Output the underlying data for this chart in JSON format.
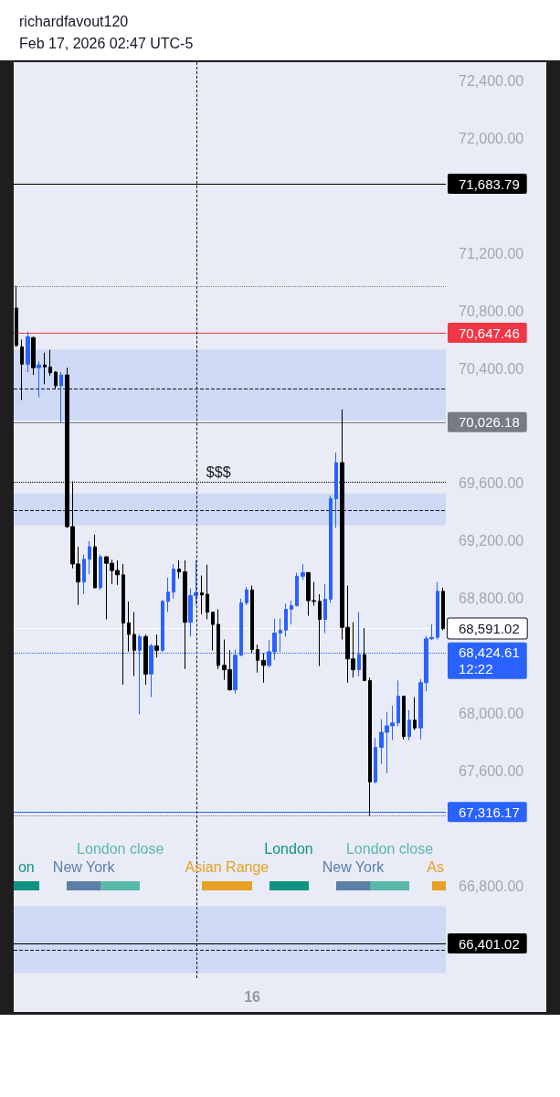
{
  "chart_data": {
    "type": "candlestick",
    "title": "richardfavout120",
    "subtitle": "Feb 17, 2026 02:47 UTC-5",
    "categories": [
      null,
      null,
      null,
      null,
      null,
      null,
      null,
      null,
      null,
      null,
      null,
      null,
      null,
      null,
      null,
      null,
      null,
      null,
      null,
      null,
      null,
      null,
      null,
      null,
      null,
      null,
      null,
      null,
      null,
      null,
      null,
      null,
      null,
      null,
      null,
      null,
      null,
      null,
      null,
      null,
      null,
      null,
      "16",
      null,
      null,
      null,
      null,
      null,
      null,
      null,
      null,
      null,
      null,
      null,
      null,
      null,
      null,
      null,
      null,
      null,
      null,
      null,
      null,
      null,
      null,
      null,
      null,
      null,
      null,
      null,
      null,
      null,
      null,
      null,
      null,
      null,
      null
    ],
    "ohlc": [
      [
        70820,
        70975,
        70550,
        70560
      ],
      [
        70550,
        70600,
        70180,
        70430
      ],
      [
        70430,
        70655,
        70375,
        70620
      ],
      [
        70615,
        70620,
        70355,
        70405
      ],
      [
        70405,
        70450,
        70200,
        70425
      ],
      [
        70425,
        70510,
        70290,
        70410
      ],
      [
        70410,
        70530,
        70350,
        70370
      ],
      [
        70375,
        70380,
        70260,
        70280
      ],
      [
        70280,
        70375,
        70020,
        70355
      ],
      [
        70355,
        70405,
        69290,
        69300
      ],
      [
        69300,
        69615,
        69010,
        69040
      ],
      [
        69040,
        69160,
        68755,
        68915
      ],
      [
        68915,
        69105,
        68830,
        69073
      ],
      [
        69073,
        69200,
        68970,
        69160
      ],
      [
        69160,
        69245,
        68870,
        68875
      ],
      [
        68875,
        69105,
        68860,
        69090
      ],
      [
        69090,
        69095,
        68655,
        69045
      ],
      [
        69045,
        69070,
        68900,
        68995
      ],
      [
        68995,
        69065,
        68895,
        68965
      ],
      [
        68965,
        69040,
        68200,
        68630
      ],
      [
        68630,
        68780,
        68430,
        68550
      ],
      [
        68550,
        68705,
        68260,
        68440
      ],
      [
        68440,
        68550,
        67995,
        68535
      ],
      [
        68535,
        68550,
        68200,
        68275
      ],
      [
        68275,
        68485,
        68115,
        68470
      ],
      [
        68470,
        68550,
        68390,
        68440
      ],
      [
        68440,
        68790,
        68430,
        68780
      ],
      [
        68780,
        68945,
        68705,
        68845
      ],
      [
        68845,
        69040,
        68800,
        69005
      ],
      [
        69005,
        69065,
        68940,
        68985
      ],
      [
        68985,
        69065,
        68310,
        68635
      ],
      [
        68635,
        68870,
        68535,
        68820
      ],
      [
        68820,
        69065,
        68755,
        68840
      ],
      [
        68840,
        68960,
        68690,
        68825
      ],
      [
        68830,
        69035,
        68655,
        68705
      ],
      [
        68705,
        68705,
        68440,
        68620
      ],
      [
        68620,
        68725,
        68310,
        68335
      ],
      [
        68335,
        68515,
        68235,
        68305
      ],
      [
        68305,
        68440,
        68160,
        68165
      ],
      [
        68165,
        68445,
        68140,
        68405
      ],
      [
        68405,
        68800,
        68400,
        68770
      ],
      [
        68770,
        68880,
        68755,
        68860
      ],
      [
        68860,
        68890,
        68420,
        68445
      ],
      [
        68445,
        68480,
        68285,
        68370
      ],
      [
        68370,
        68420,
        68215,
        68335
      ],
      [
        68335,
        68510,
        68320,
        68430
      ],
      [
        68430,
        68660,
        68375,
        68560
      ],
      [
        68560,
        68660,
        68430,
        68580
      ],
      [
        68580,
        68765,
        68535,
        68725
      ],
      [
        68725,
        68785,
        68620,
        68750
      ],
      [
        68750,
        68980,
        68745,
        68955
      ],
      [
        68955,
        69040,
        68930,
        68980
      ],
      [
        68980,
        68985,
        68680,
        68785
      ],
      [
        68785,
        68915,
        68750,
        68780
      ],
      [
        68780,
        68830,
        68330,
        68655
      ],
      [
        68655,
        68900,
        68560,
        68795
      ],
      [
        68795,
        69515,
        68770,
        69495
      ],
      [
        69495,
        69815,
        69290,
        69745
      ],
      [
        69745,
        70115,
        68515,
        68600
      ],
      [
        68600,
        68890,
        68215,
        68380
      ],
      [
        68380,
        68635,
        68250,
        68305
      ],
      [
        68305,
        68705,
        68260,
        68410
      ],
      [
        68410,
        68595,
        68225,
        68230
      ],
      [
        68230,
        68250,
        67290,
        67525
      ],
      [
        67525,
        67830,
        67515,
        67765
      ],
      [
        67765,
        67960,
        67650,
        67870
      ],
      [
        67870,
        68010,
        67585,
        67915
      ],
      [
        67915,
        68055,
        67815,
        67935
      ],
      [
        67935,
        68230,
        67910,
        68120
      ],
      [
        68120,
        68125,
        67820,
        67840
      ],
      [
        67840,
        68025,
        67815,
        67955
      ],
      [
        67955,
        68115,
        67885,
        67900
      ],
      [
        67900,
        68240,
        67820,
        68215
      ],
      [
        68215,
        68540,
        68155,
        68520
      ],
      [
        68520,
        68620,
        68510,
        68530
      ],
      [
        68530,
        68915,
        68515,
        68850
      ],
      [
        68850,
        68875,
        68580,
        68591.02
      ]
    ],
    "colors": [
      "#000000",
      "#000000",
      "#2962ff",
      "#000000",
      "#2962ff",
      "#000000",
      "#000000",
      "#000000",
      "#2962ff",
      "#000000",
      "#000000",
      "#000000",
      "#2962ff",
      "#2962ff",
      "#000000",
      "#2962ff",
      "#000000",
      "#000000",
      "#000000",
      "#000000",
      "#000000",
      "#000000",
      "#2962ff",
      "#000000",
      "#2962ff",
      "#000000",
      "#2962ff",
      "#2962ff",
      "#2962ff",
      "#000000",
      "#000000",
      "#2962ff",
      "#2962ff",
      "#000000",
      "#000000",
      "#000000",
      "#000000",
      "#000000",
      "#000000",
      "#2962ff",
      "#2962ff",
      "#2962ff",
      "#000000",
      "#000000",
      "#000000",
      "#2962ff",
      "#2962ff",
      "#2962ff",
      "#2962ff",
      "#2962ff",
      "#2962ff",
      "#2962ff",
      "#000000",
      "#000000",
      "#000000",
      "#2962ff",
      "#2962ff",
      "#2962ff",
      "#000000",
      "#000000",
      "#000000",
      "#2962ff",
      "#000000",
      "#000000",
      "#2962ff",
      "#2962ff",
      "#2962ff",
      "#2962ff",
      "#2962ff",
      "#000000",
      "#2962ff",
      "#000000",
      "#2962ff",
      "#2962ff",
      "#2962ff",
      "#2962ff",
      "#000000"
    ],
    "ylim": [
      66160,
      72530
    ],
    "yticks": [
      {
        "value": 66800,
        "label": "66,800.00"
      },
      {
        "value": 67600,
        "label": "67,600.00"
      },
      {
        "value": 68000,
        "label": "68,000.00"
      },
      {
        "value": 68800,
        "label": "68,800.00"
      },
      {
        "value": 69200,
        "label": "69,200.00"
      },
      {
        "value": 69600,
        "label": "69,600.00"
      },
      {
        "value": 70400,
        "label": "70,400.00"
      },
      {
        "value": 70800,
        "label": "70,800.00"
      },
      {
        "value": 71200,
        "label": "71,200.00"
      },
      {
        "value": 72000,
        "label": "72,000.00"
      },
      {
        "value": 72400,
        "label": "72,400.00"
      }
    ],
    "ref_lines": [
      {
        "axis": "y",
        "value": 71683.79,
        "label": "71,683.79",
        "color": "#000000",
        "line_style": "solid"
      },
      {
        "axis": "y",
        "value": 70970,
        "color": "#787b86",
        "line_style": "dotted"
      },
      {
        "axis": "y",
        "value": 70647.46,
        "label": "70,647.46",
        "color": "#f23645",
        "line_style": "solid"
      },
      {
        "axis": "y",
        "value": 70260,
        "color": "#131722",
        "line_style": "dashed"
      },
      {
        "axis": "y",
        "value": 70026.18,
        "label": "70,026.18",
        "color": "#787b86",
        "line_style": "solid"
      },
      {
        "axis": "y",
        "value": 69613,
        "color": "#000000",
        "line_style": "dotted"
      },
      {
        "axis": "y",
        "value": 69416,
        "color": "#131722",
        "line_style": "dashed"
      },
      {
        "axis": "y",
        "value": 68591.02,
        "label": "68,591.02",
        "color": "#ffffff",
        "line_style": "solid"
      },
      {
        "axis": "y",
        "value": 68424.61,
        "label": "68,424.61\n12:22",
        "color": "#2962ff",
        "line_style": "dotted"
      },
      {
        "axis": "y",
        "value": 67316.17,
        "label": "67,316.17",
        "color": "#2962ff",
        "line_style": "solid"
      },
      {
        "axis": "y",
        "value": 67290,
        "color": "#787b86",
        "line_style": "dotted"
      },
      {
        "axis": "y",
        "value": 66401.02,
        "label": "66,401.02",
        "color": "#000000",
        "line_style": "solid"
      },
      {
        "axis": "y",
        "value": 66356,
        "color": "#131722",
        "line_style": "dashed"
      }
    ],
    "bands": [
      {
        "axis": "y",
        "from": 70040,
        "to": 70530,
        "color": "#c8d6f5"
      },
      {
        "axis": "y",
        "from": 69310,
        "to": 69530,
        "color": "#c8d6f5"
      },
      {
        "axis": "y",
        "from": 66197,
        "to": 66660,
        "color": "#c8d6f5"
      }
    ],
    "annotations": [
      {
        "text": "$$$",
        "y": 69613
      },
      "on",
      "New York",
      "London close",
      "Asian Range",
      "London",
      "New York",
      "London close",
      "As"
    ]
  }
}
